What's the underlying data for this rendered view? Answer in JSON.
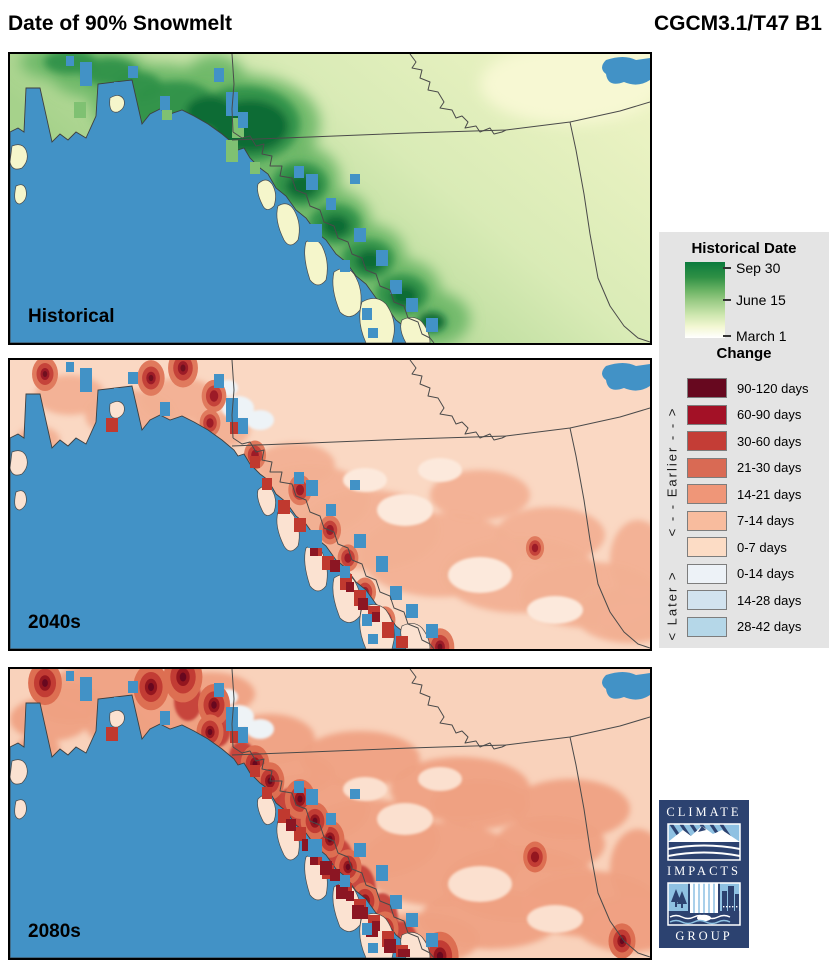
{
  "figure": {
    "title": "Date of 90% Snowmelt",
    "model": "CGCM3.1/T47 B1"
  },
  "panels": [
    {
      "label": "Historical"
    },
    {
      "label": "2040s"
    },
    {
      "label": "2080s"
    }
  ],
  "legend": {
    "historical_date": {
      "title": "Historical Date",
      "ticks": [
        {
          "label": "Sep 30"
        },
        {
          "label": "June 15"
        },
        {
          "label": "March 1"
        }
      ]
    },
    "change": {
      "title": "Change",
      "earlier_axis": "< - - Earlier - - >",
      "later_axis": "< Later >",
      "items": [
        {
          "label": "90-120 days",
          "color": "#67081f"
        },
        {
          "label": "60-90 days",
          "color": "#a31126"
        },
        {
          "label": "30-60 days",
          "color": "#c43d36"
        },
        {
          "label": "21-30 days",
          "color": "#d96a54"
        },
        {
          "label": "14-21 days",
          "color": "#ef9678"
        },
        {
          "label": "7-14 days",
          "color": "#f8bc9e"
        },
        {
          "label": "0-7 days",
          "color": "#fcdcc5"
        },
        {
          "label": "0-14 days",
          "color": "#edf2f7"
        },
        {
          "label": "14-28 days",
          "color": "#d2e3ef"
        },
        {
          "label": "28-42 days",
          "color": "#b5d7e8"
        }
      ]
    }
  },
  "logo": {
    "line1": "CLIMATE",
    "line2": "IMPACTS",
    "line3": "GROUP",
    "navy": "#2c4270",
    "light_blue": "#8ec1e2"
  },
  "colors": {
    "ocean": "#4292c6",
    "boundary": "#4a4a4a",
    "legend_bg": "#e4e4e4"
  },
  "map_palettes": {
    "historical": {
      "bg_light": "#f3f6c9",
      "bg_mid": "#d9ebb6",
      "bg_deep": "#a6d28b",
      "green_mid": "#6fb868",
      "green_dark": "#2e9148",
      "green_darkest": "#0b6c36",
      "pale_corner": "#f7f8d3",
      "island": "#f5f6cb",
      "green_cell": "#7fc172"
    },
    "change_2040s": {
      "bg": "#fad8c3",
      "band": "#f2b094",
      "pale": "#fce9dc",
      "white": "#edf3f7",
      "island": "#fbe2d1",
      "red_cell": "#c0392f",
      "dark_cell": "#8c1623",
      "spot_outer": "#e07a5d",
      "spot_mid": "#c5433a",
      "spot_core": "#9c1b27",
      "spot_darkest": "#70101f"
    },
    "change_2080s": {
      "bg": "#f9d2bb",
      "band": "#efa183",
      "pale": "#fbe0cf",
      "white": "#eef3f6",
      "island": "#fbe2d1",
      "red_cell": "#c0392f",
      "dark_cell": "#8c1623",
      "spot_outer": "#dd6f52",
      "spot_mid": "#c23c34",
      "spot_core": "#94161f",
      "spot_darkest": "#67081f"
    }
  }
}
